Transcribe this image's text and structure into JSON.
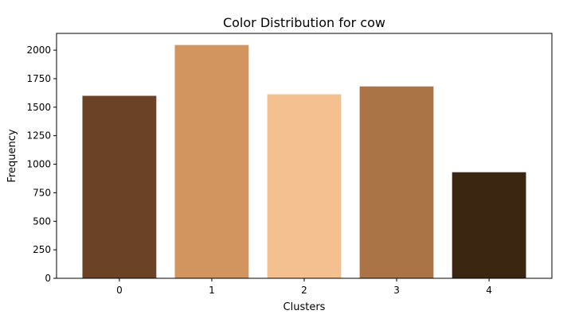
{
  "chart_data": {
    "type": "bar",
    "title": "Color Distribution for cow",
    "xlabel": "Clusters",
    "ylabel": "Frequency",
    "categories": [
      "0",
      "1",
      "2",
      "3",
      "4"
    ],
    "values": [
      1600,
      2045,
      1613,
      1682,
      930
    ],
    "colors": [
      "#6b4225",
      "#d2955f",
      "#f5c08f",
      "#ab7447",
      "#3b2612"
    ],
    "ylim": [
      0,
      2147
    ],
    "yticks": [
      0,
      250,
      500,
      750,
      1000,
      1250,
      1500,
      1750,
      2000
    ],
    "grid": false,
    "legend": "none"
  }
}
